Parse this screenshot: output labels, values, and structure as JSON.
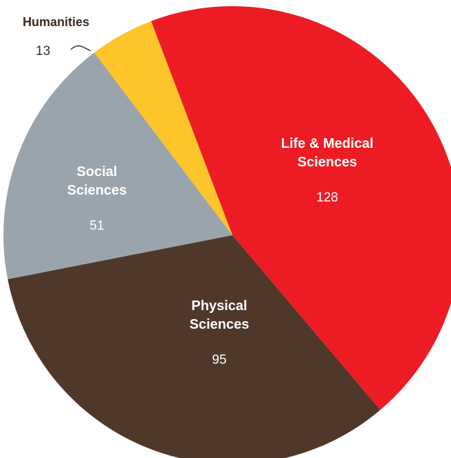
{
  "chart_data": {
    "type": "pie",
    "slices": [
      {
        "label_lines": [
          "Life & Medical",
          "Sciences"
        ],
        "value": 128,
        "color": "#ed1c24",
        "text_color": "#ffffff"
      },
      {
        "label_lines": [
          "Physical",
          "Sciences"
        ],
        "value": 95,
        "color": "#4f372a",
        "text_color": "#ffffff"
      },
      {
        "label_lines": [
          "Social",
          "Sciences"
        ],
        "value": 51,
        "color": "#9aa4ac",
        "text_color": "#ffffff"
      },
      {
        "label_lines": [
          "Humanities"
        ],
        "value": 13,
        "color": "#fdc52a",
        "text_color": "#3b2a20"
      }
    ],
    "start_angle_deg": -20.8,
    "direction": "clockwise",
    "callout_slice": "Humanities"
  }
}
